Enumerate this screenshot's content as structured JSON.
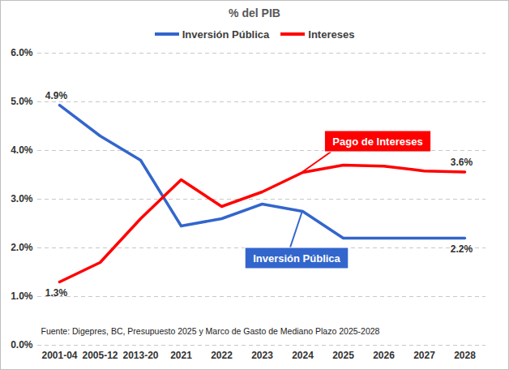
{
  "chart_data": {
    "type": "line",
    "title": "% del PIB",
    "categories": [
      "2001-04",
      "2005-12",
      "2013-20",
      "2021",
      "2022",
      "2023",
      "2024",
      "2025",
      "2026",
      "2027",
      "2028"
    ],
    "series": [
      {
        "name": "Inversión Pública",
        "color": "#3366CC",
        "values": [
          4.93,
          4.3,
          3.8,
          2.45,
          2.6,
          2.9,
          2.75,
          2.2,
          2.2,
          2.2,
          2.2
        ],
        "value_labels": [
          "4.9%",
          null,
          null,
          null,
          null,
          null,
          null,
          null,
          null,
          null,
          "2.2%"
        ]
      },
      {
        "name": "Intereses",
        "color": "#FF0000",
        "values": [
          1.3,
          1.7,
          2.6,
          3.4,
          2.85,
          3.15,
          3.55,
          3.7,
          3.68,
          3.58,
          3.56
        ],
        "value_labels": [
          "1.3%",
          null,
          null,
          null,
          null,
          null,
          null,
          null,
          null,
          null,
          "3.6%"
        ]
      }
    ],
    "ylim": [
      0,
      6
    ],
    "yticks": [
      {
        "value": 0,
        "label": "0.0%"
      },
      {
        "value": 1,
        "label": "1.0%"
      },
      {
        "value": 2,
        "label": "2.0%"
      },
      {
        "value": 3,
        "label": "3.0%"
      },
      {
        "value": 4,
        "label": "4.0%"
      },
      {
        "value": 5,
        "label": "5.0%"
      },
      {
        "value": 6,
        "label": "6.0%"
      }
    ],
    "grid": true,
    "legend": "top",
    "annotations": [
      {
        "text": "Pago de Intereses",
        "series": "Intereses",
        "category": "2024"
      },
      {
        "text": "Inversión Pública",
        "series": "Inversión Pública",
        "category": "2024"
      }
    ],
    "source": "Fuente: Digepres, BC, Presupuesto 2025 y Marco de Gasto de Mediano Plazo 2025-2028"
  }
}
